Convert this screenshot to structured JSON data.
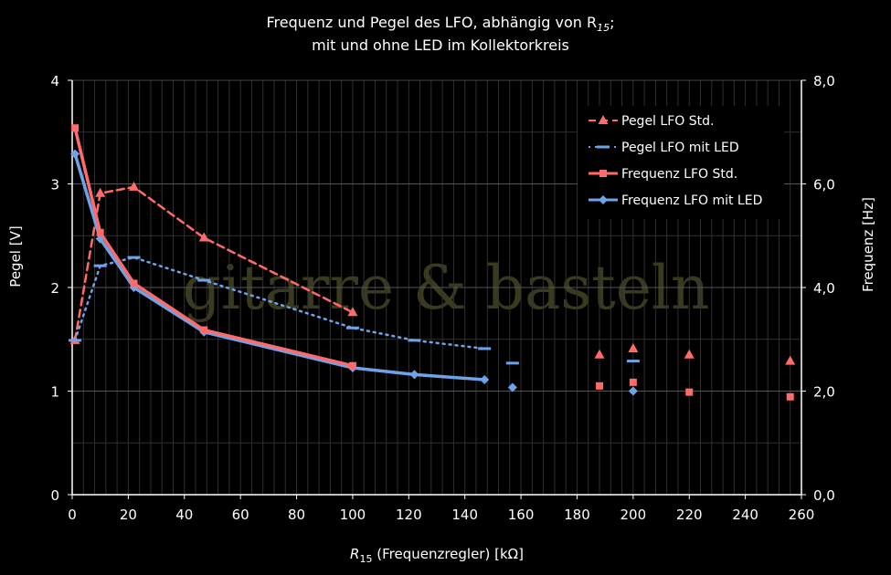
{
  "chart_data": {
    "type": "line",
    "title_line1": "Frequenz und Pegel des LFO, abhängig von R",
    "title_line1_sub": "15",
    "title_line1_end": ";",
    "title_line2": "mit und ohne LED im Kollektorkreis",
    "xlabel_var": "R",
    "xlabel_sub": "15",
    "xlabel_rest": " (Frequenzregler) [kΩ]",
    "ylabel_left": "Pegel  [V]",
    "ylabel_right": "Frequenz [Hz]",
    "xlim": [
      0,
      260
    ],
    "ylim_left": [
      0,
      4
    ],
    "ylim_right": [
      0,
      8
    ],
    "x_ticks": [
      "0",
      "20",
      "40",
      "60",
      "80",
      "100",
      "120",
      "140",
      "160",
      "180",
      "200",
      "220",
      "240",
      "260"
    ],
    "y_left_ticks": [
      "0",
      "1",
      "2",
      "3",
      "4"
    ],
    "y_right_ticks": [
      "0,0",
      "2,0",
      "4,0",
      "6,0",
      "8,0"
    ],
    "grid": true,
    "legend_position": "top-right",
    "watermark": "gitarre & basteln",
    "series": [
      {
        "name": "Pegel LFO Std.",
        "axis": "left",
        "color": "#ff6b6b",
        "style": "dashed",
        "marker": "triangle",
        "x": [
          1,
          10,
          22,
          47,
          100
        ],
        "y": [
          1.49,
          2.91,
          2.97,
          2.48,
          1.76
        ],
        "extra_points": {
          "x": [
            188,
            200,
            220,
            256
          ],
          "y": [
            1.35,
            1.41,
            1.35,
            1.29
          ]
        }
      },
      {
        "name": "Pegel LFO mit LED",
        "axis": "left",
        "color": "#6fa3e8",
        "style": "dotted",
        "marker": "dash",
        "x": [
          1,
          10,
          22,
          47,
          100,
          122,
          147
        ],
        "y": [
          1.49,
          2.21,
          2.29,
          2.07,
          1.61,
          1.49,
          1.41
        ],
        "extra_points": {
          "x": [
            157,
            200
          ],
          "y": [
            1.27,
            1.29
          ]
        }
      },
      {
        "name": "Frequenz LFO Std.",
        "axis": "right",
        "color": "#ff6b6b",
        "style": "solid",
        "marker": "square",
        "x": [
          1,
          10,
          22,
          47,
          100
        ],
        "y": [
          7.08,
          5.06,
          4.08,
          3.18,
          2.49
        ],
        "extra_points": {
          "x": [
            188,
            200,
            220,
            256
          ],
          "y": [
            2.1,
            2.17,
            1.98,
            1.89
          ]
        }
      },
      {
        "name": "Frequenz LFO mit LED",
        "axis": "right",
        "color": "#6fa3e8",
        "style": "solid",
        "marker": "diamond",
        "x": [
          1,
          10,
          22,
          47,
          100,
          122,
          147
        ],
        "y": [
          6.58,
          4.94,
          4.0,
          3.14,
          2.45,
          2.32,
          2.22
        ],
        "extra_points": {
          "x": [
            157,
            200
          ],
          "y": [
            2.07,
            2.0
          ]
        }
      }
    ]
  }
}
